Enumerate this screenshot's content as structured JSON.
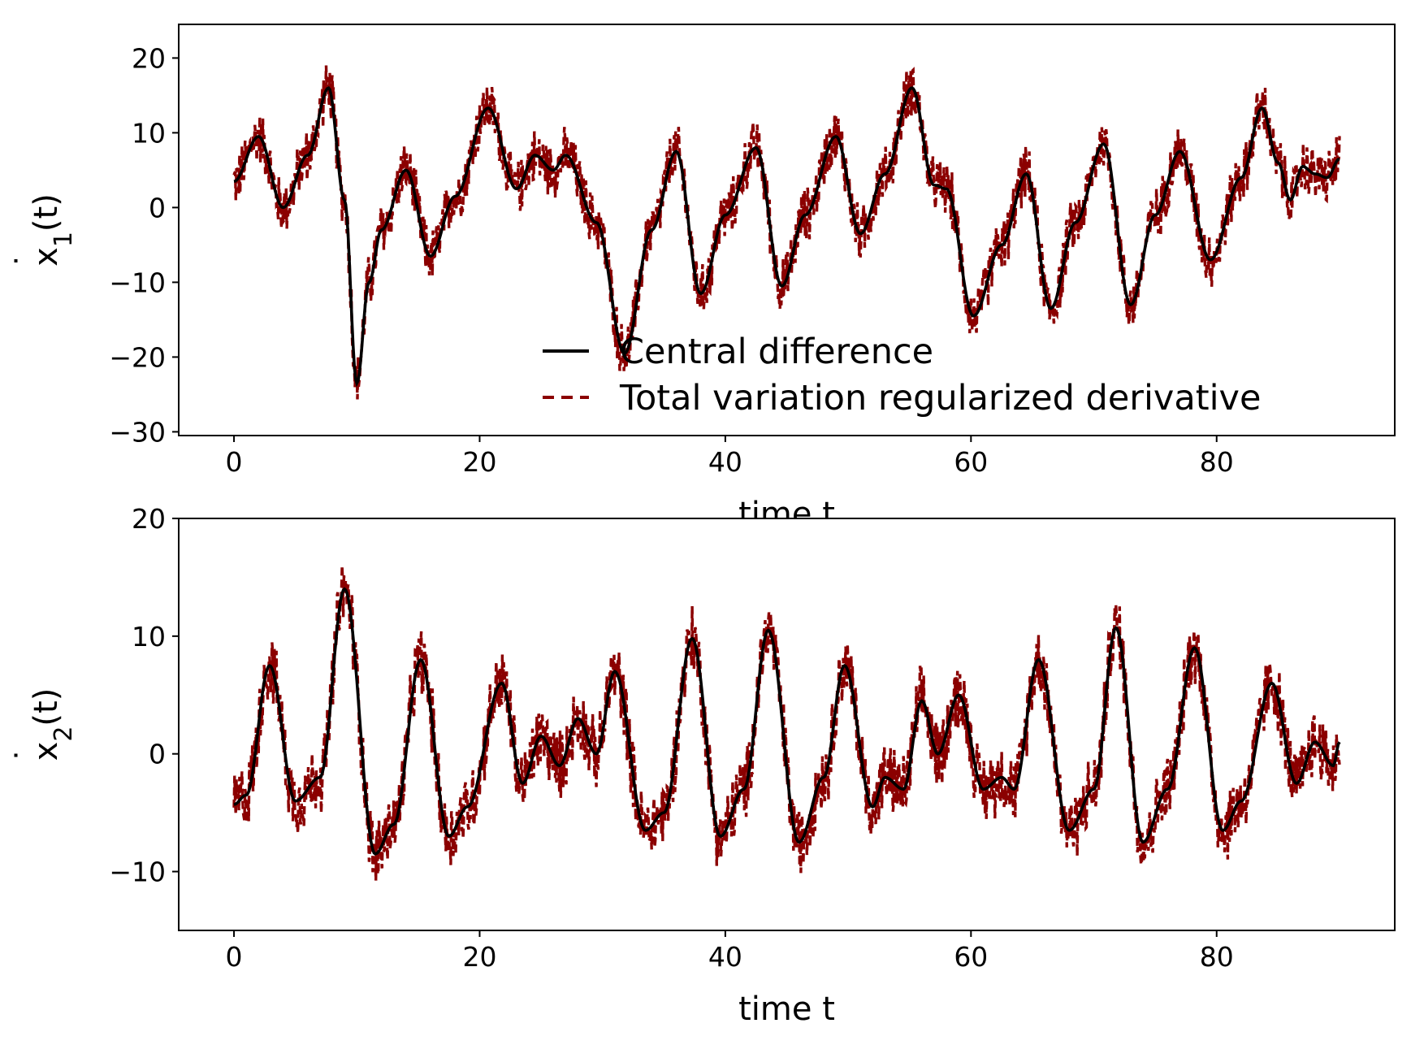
{
  "chart_data": [
    {
      "type": "line",
      "ylabel": "ẋ₁(t)",
      "ylabel_parts": {
        "base": "x",
        "sub": "1",
        "suffix": "(t)"
      },
      "xlabel": "time t",
      "xlim": [
        -4.5,
        94.5
      ],
      "ylim": [
        -30.5,
        24.5
      ],
      "xticks": [
        0,
        20,
        40,
        60,
        80
      ],
      "yticks": [
        -30,
        -20,
        -10,
        0,
        10,
        20
      ],
      "tick_labels_x": [
        "0",
        "20",
        "40",
        "60",
        "80"
      ],
      "tick_labels_y": [
        "−30",
        "−20",
        "−10",
        "0",
        "10",
        "20"
      ],
      "grid": false,
      "legend_position": "lower-right",
      "legend": [
        "Central difference",
        "Total variation regularized derivative"
      ],
      "noise_amplitude": 3.5,
      "series": [
        {
          "name": "Central difference",
          "color": "#000000",
          "style": "solid",
          "x": [
            0,
            2,
            4,
            6,
            7.7,
            9,
            10,
            11,
            12,
            14,
            16,
            18,
            20.7,
            23,
            24.5,
            26,
            27,
            29.5,
            31.8,
            34,
            36,
            38,
            40,
            42.5,
            44.6,
            46.5,
            49,
            51,
            53,
            55.2,
            57,
            58,
            60.2,
            62.5,
            64.5,
            66.5,
            68.5,
            70.8,
            73,
            75,
            77,
            79.5,
            82,
            83.7,
            85,
            86,
            87,
            88,
            89,
            90
          ],
          "values": [
            3.5,
            9.5,
            0,
            7,
            16,
            1,
            -23.5,
            -10,
            -3,
            5,
            -6.5,
            1.5,
            13.3,
            2.5,
            7,
            5,
            7,
            -2,
            -19.5,
            -3,
            7.5,
            -11.5,
            -1,
            8,
            -10.5,
            -1,
            9.5,
            -3.5,
            4.5,
            16,
            3,
            2.5,
            -14.5,
            -5,
            4.5,
            -13.5,
            -2,
            8.5,
            -13,
            -1,
            7.5,
            -7,
            4,
            13.3,
            6,
            1,
            5.5,
            4.5,
            4,
            6.5
          ]
        },
        {
          "name": "Total variation regularized derivative",
          "color": "#8b0000",
          "style": "dashed"
        }
      ]
    },
    {
      "type": "line",
      "ylabel": "ẋ₂(t)",
      "ylabel_parts": {
        "base": "x",
        "sub": "2",
        "suffix": "(t)"
      },
      "xlabel": "time t",
      "xlim": [
        -4.5,
        94.5
      ],
      "ylim": [
        -15,
        20
      ],
      "xticks": [
        0,
        20,
        40,
        60,
        80
      ],
      "yticks": [
        -10,
        0,
        10,
        20
      ],
      "tick_labels_x": [
        "0",
        "20",
        "40",
        "60",
        "80"
      ],
      "tick_labels_y": [
        "−10",
        "0",
        "10",
        "20"
      ],
      "grid": false,
      "noise_amplitude": 2.8,
      "series": [
        {
          "name": "Central difference",
          "color": "#000000",
          "style": "solid",
          "x": [
            0,
            1,
            2.9,
            5,
            7,
            9,
            11.5,
            13,
            15.2,
            17.5,
            19,
            21.8,
            23.5,
            25,
            26.5,
            28,
            29.5,
            31,
            33.5,
            35,
            37.3,
            39.6,
            41.5,
            43.5,
            46,
            48,
            49.7,
            52,
            53,
            54.5,
            56,
            57.3,
            59,
            61,
            62.5,
            63.5,
            65.5,
            68,
            70,
            71.8,
            74,
            76,
            78.2,
            80.5,
            82,
            84.5,
            86.5,
            88,
            89.5,
            90
          ],
          "values": [
            -4.3,
            -3.5,
            7.5,
            -4,
            -2,
            14,
            -8.5,
            -6,
            8,
            -7,
            -4.5,
            6,
            -2.5,
            1.5,
            -1,
            3,
            0,
            7,
            -6.5,
            -5,
            9.8,
            -7,
            -3,
            10.5,
            -7.5,
            -2,
            7.5,
            -4.5,
            -2,
            -3,
            4.5,
            0,
            5,
            -3,
            -2,
            -3,
            8,
            -6.5,
            -3,
            10.7,
            -7.5,
            -3,
            9,
            -6.5,
            -4,
            6,
            -2.5,
            1,
            -1,
            1
          ]
        },
        {
          "name": "Total variation regularized derivative",
          "color": "#8b0000",
          "style": "dashed"
        }
      ]
    }
  ]
}
